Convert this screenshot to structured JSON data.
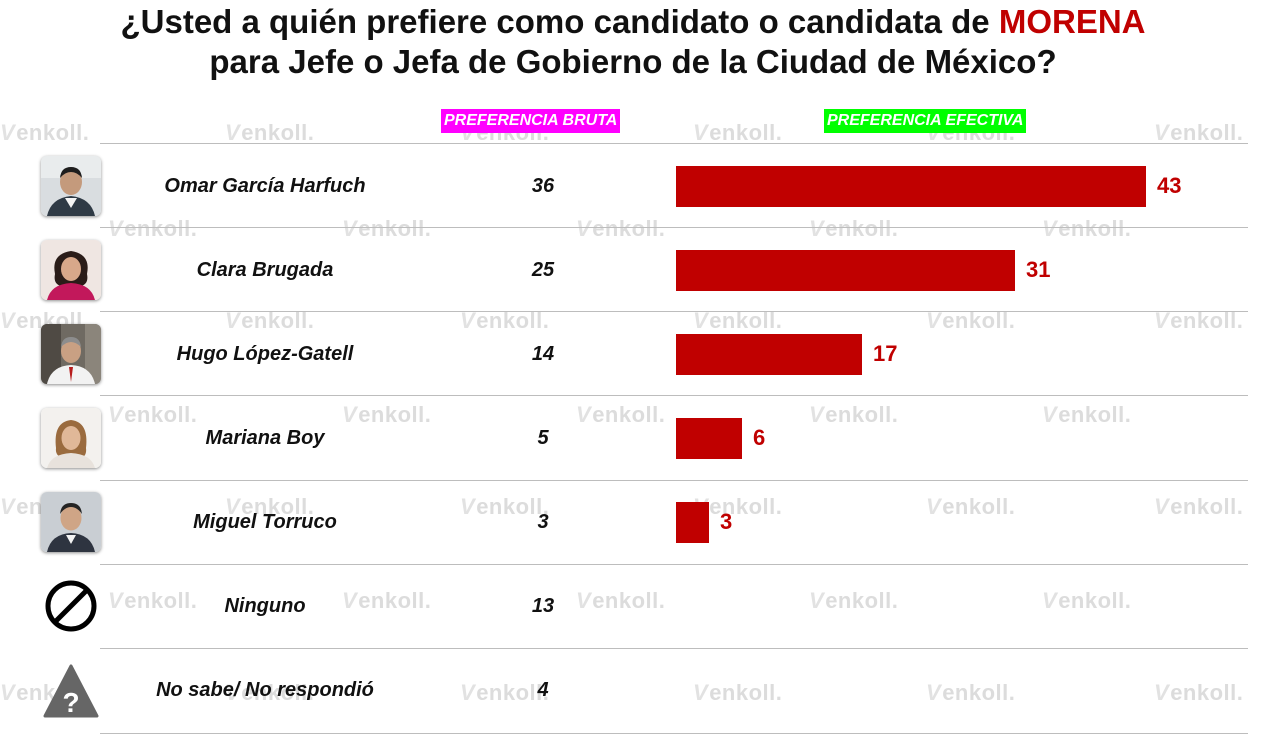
{
  "title": {
    "line1_prefix": "¿Usted a quién prefiere como candidato o candidata de ",
    "line1_highlight": "MORENA",
    "line2": "para Jefe o Jefa de Gobierno de la Ciudad de México?"
  },
  "watermark_text": "enkoll.",
  "headers": {
    "bruta": "PREFERENCIA BRUTA",
    "efectiva": "PREFERENCIA EFECTIVA"
  },
  "colors": {
    "bar": "#c00000",
    "value_label": "#c00000",
    "title_highlight": "#c00000",
    "header_bruta_bg": "#ff00ff",
    "header_efectiva_bg": "#00ff00"
  },
  "chart_data": {
    "type": "bar",
    "orientation": "horizontal",
    "categories": [
      "Omar García Harfuch",
      "Clara Brugada",
      "Hugo López-Gatell",
      "Mariana Boy",
      "Miguel Torruco",
      "Ninguno",
      "No sabe/ No respondió"
    ],
    "series": [
      {
        "name": "PREFERENCIA BRUTA",
        "values": [
          36,
          25,
          14,
          5,
          3,
          13,
          4
        ]
      },
      {
        "name": "PREFERENCIA EFECTIVA",
        "values": [
          43,
          31,
          17,
          6,
          3,
          null,
          null
        ]
      }
    ],
    "title": "¿Usted a quién prefiere como candidato o candidata de MORENA para Jefe o Jefa de Gobierno de la Ciudad de México?",
    "xlim": [
      0,
      43
    ],
    "grid": false,
    "legend": "none"
  },
  "rows": [
    {
      "name": "Omar García Harfuch",
      "bruta": "36",
      "efectiva": "43",
      "efectiva_value": 43,
      "icon": "candidate-photo-icon"
    },
    {
      "name": "Clara Brugada",
      "bruta": "25",
      "efectiva": "31",
      "efectiva_value": 31,
      "icon": "candidate-photo-icon"
    },
    {
      "name": "Hugo López-Gatell",
      "bruta": "14",
      "efectiva": "17",
      "efectiva_value": 17,
      "icon": "candidate-photo-icon"
    },
    {
      "name": "Mariana Boy",
      "bruta": "5",
      "efectiva": "6",
      "efectiva_value": 6,
      "icon": "candidate-photo-icon"
    },
    {
      "name": "Miguel Torruco",
      "bruta": "3",
      "efectiva": "3",
      "efectiva_value": 3,
      "icon": "candidate-photo-icon"
    },
    {
      "name": "Ninguno",
      "bruta": "13",
      "efectiva": "",
      "efectiva_value": null,
      "icon": "prohibited-icon"
    },
    {
      "name": "No sabe/ No respondió",
      "bruta": "4",
      "efectiva": "",
      "efectiva_value": null,
      "icon": "warning-question-icon"
    }
  ]
}
